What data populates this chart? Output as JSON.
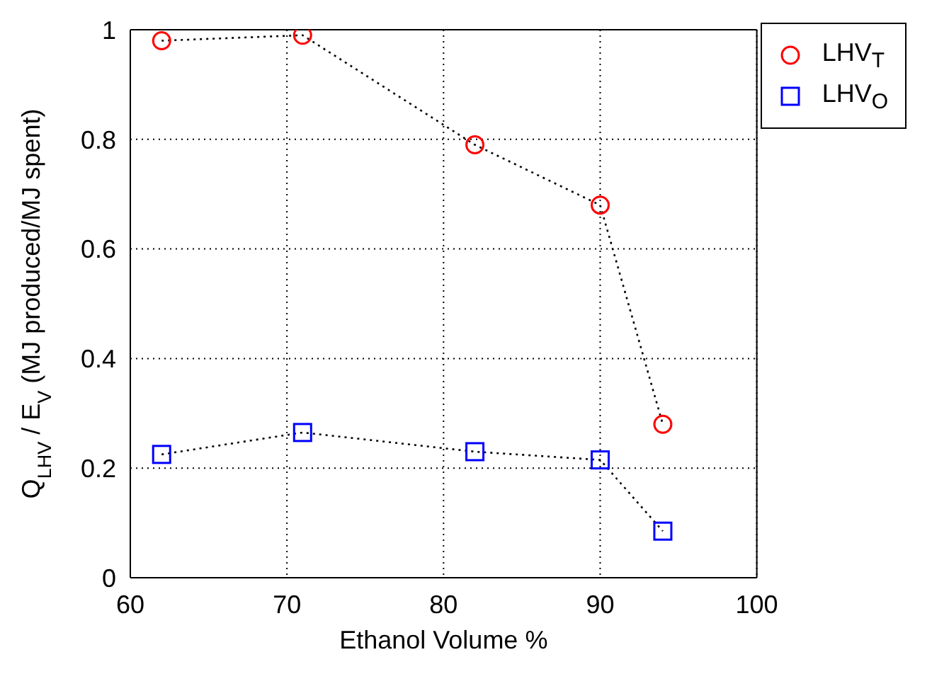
{
  "chart_data": {
    "type": "line",
    "xlabel": "Ethanol Volume %",
    "ylabel": "Q$_{LHV}$ / E$_{V}$ (MJ produced/MJ spent)",
    "x": [
      62,
      71,
      82,
      90,
      94
    ],
    "series": [
      {
        "name": "LHV$_{T}$",
        "color": "#ff0000",
        "marker": "circle",
        "values": [
          0.98,
          0.99,
          0.79,
          0.68,
          0.28
        ]
      },
      {
        "name": "LHV$_{O}$",
        "color": "#0000ff",
        "marker": "square",
        "values": [
          0.225,
          0.265,
          0.23,
          0.215,
          0.085
        ]
      }
    ],
    "xlim": [
      60,
      100
    ],
    "xticks": [
      60,
      70,
      80,
      90,
      100
    ],
    "ylim": [
      0,
      1
    ],
    "yticks": [
      0,
      0.2,
      0.4,
      0.6,
      0.8,
      1
    ],
    "grid": true,
    "legend": "top right",
    "line_style": "dotted"
  }
}
